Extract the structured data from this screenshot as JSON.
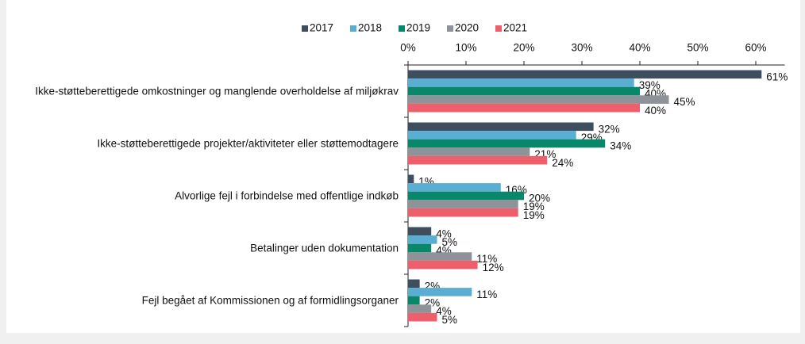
{
  "chart_data": {
    "type": "hbar",
    "categories": [
      "Ikke-støtteberettigede omkostninger og manglende overholdelse af miljøkrav",
      "Ikke-støtteberettigede projekter/aktiviteter eller støttemodtagere",
      "Alvorlige fejl i forbindelse med offentlige indkøb",
      "Betalinger uden dokumentation",
      "Fejl begået af Kommissionen og af formidlingsorganer"
    ],
    "series": [
      {
        "name": "2017",
        "color": "#3e4e5e",
        "values": [
          61,
          32,
          1,
          4,
          2
        ],
        "value_labels": [
          "61%",
          "32%",
          "1%",
          "4%",
          "2%"
        ]
      },
      {
        "name": "2018",
        "color": "#5aaed4",
        "values": [
          39,
          29,
          16,
          5,
          11
        ],
        "value_labels": [
          "39%",
          "29%",
          "16%",
          "5%",
          "11%"
        ]
      },
      {
        "name": "2019",
        "color": "#08876a",
        "values": [
          40,
          34,
          20,
          4,
          2
        ],
        "value_labels": [
          "40%",
          "34%",
          "20%",
          "4%",
          "2%"
        ]
      },
      {
        "name": "2020",
        "color": "#8d9399",
        "values": [
          45,
          21,
          19,
          11,
          4
        ],
        "value_labels": [
          "45%",
          "21%",
          "19%",
          "11%",
          "4%"
        ]
      },
      {
        "name": "2021",
        "color": "#ef5f6b",
        "values": [
          40,
          24,
          19,
          12,
          5
        ],
        "value_labels": [
          "40%",
          "24%",
          "19%",
          "12%",
          "5%"
        ]
      }
    ],
    "xlim": [
      0,
      65
    ],
    "xticks": [
      {
        "value": 0,
        "label": "0%"
      },
      {
        "value": 10,
        "label": "10%"
      },
      {
        "value": 20,
        "label": "20%"
      },
      {
        "value": 30,
        "label": "30%"
      },
      {
        "value": 40,
        "label": "40%"
      },
      {
        "value": 50,
        "label": "50%"
      },
      {
        "value": 60,
        "label": "60%"
      }
    ],
    "legend": "top"
  }
}
